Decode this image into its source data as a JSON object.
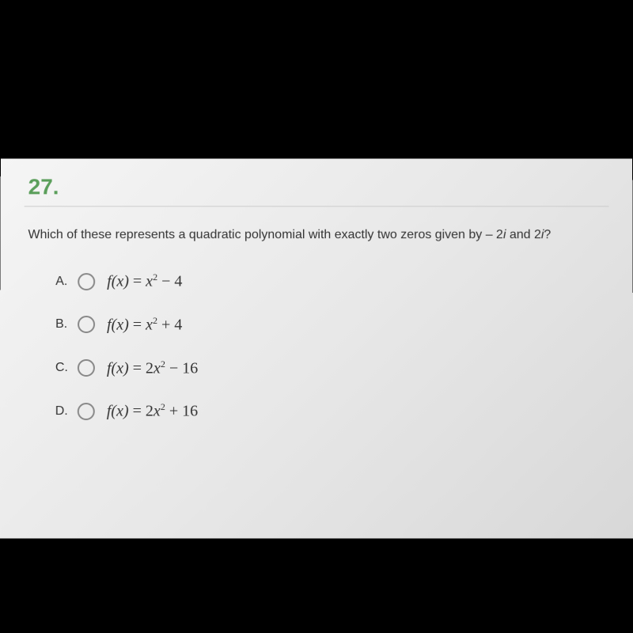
{
  "question": {
    "number": "27.",
    "text_prefix": "Which of these represents a quadratic polynomial with exactly two zeros given by – 2",
    "text_i1": "i",
    "text_mid": " and 2",
    "text_i2": "i",
    "text_suffix": "?"
  },
  "options": [
    {
      "letter": "A.",
      "formula_fx": "f(x)",
      "formula_eq": " = ",
      "formula_x": "x",
      "formula_exp": "2",
      "formula_rest": " − 4"
    },
    {
      "letter": "B.",
      "formula_fx": "f(x)",
      "formula_eq": " = ",
      "formula_x": "x",
      "formula_exp": "2",
      "formula_rest": " + 4"
    },
    {
      "letter": "C.",
      "formula_fx": "f(x)",
      "formula_eq": " = 2",
      "formula_x": "x",
      "formula_exp": "2",
      "formula_rest": " − 16"
    },
    {
      "letter": "D.",
      "formula_fx": "f(x)",
      "formula_eq": " = 2",
      "formula_x": "x",
      "formula_exp": "2",
      "formula_rest": " + 16"
    }
  ],
  "colors": {
    "background": "#000000",
    "screen_bg": "#f0f0f0",
    "question_number": "#5a9e5a",
    "text": "#333333",
    "radio_border": "#888888",
    "divider": "#cccccc"
  },
  "typography": {
    "question_number_size": 28,
    "question_text_size": 16,
    "option_letter_size": 16,
    "formula_size": 20
  }
}
